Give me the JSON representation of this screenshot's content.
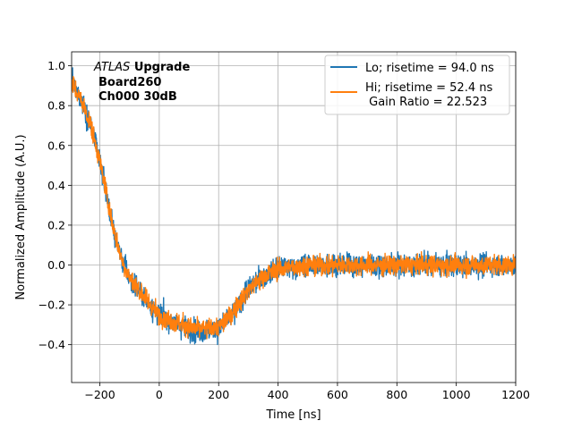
{
  "chart_data": {
    "type": "line",
    "xlabel": "Time [ns]",
    "ylabel": "Normalized Amplitude (A.U.)",
    "xlim": [
      -295,
      1200
    ],
    "ylim": [
      -0.59,
      1.07
    ],
    "xticks": [
      -200,
      0,
      200,
      400,
      600,
      800,
      1000,
      1200
    ],
    "yticks": [
      -0.4,
      -0.2,
      0.0,
      0.2,
      0.4,
      0.6,
      0.8,
      1.0
    ],
    "xtick_labels": [
      "−200",
      "0",
      "200",
      "400",
      "600",
      "800",
      "1000",
      "1200"
    ],
    "ytick_labels": [
      "−0.4",
      "−0.2",
      "0.0",
      "0.2",
      "0.4",
      "0.6",
      "0.8",
      "1.0"
    ],
    "grid": true,
    "legend_position": "top-right",
    "annotation": {
      "experiment": "ATLAS",
      "tag": "Upgrade",
      "board": "Board260",
      "channel": "Ch000 30dB"
    },
    "series": [
      {
        "name": "Lo; risetime = 94.0 ns",
        "color": "#1f77b4",
        "noise": 0.085,
        "x": [
          -295,
          -260,
          -230,
          -200,
          -180,
          -160,
          -140,
          -120,
          -100,
          -80,
          -60,
          -40,
          -20,
          0,
          40,
          80,
          120,
          160,
          200,
          230,
          260,
          300,
          350,
          400,
          450,
          500,
          550,
          600,
          700,
          800,
          900,
          1000,
          1100,
          1200
        ],
        "values": [
          0.92,
          0.82,
          0.7,
          0.52,
          0.38,
          0.22,
          0.1,
          0.0,
          -0.06,
          -0.1,
          -0.14,
          -0.18,
          -0.22,
          -0.25,
          -0.28,
          -0.31,
          -0.33,
          -0.33,
          -0.32,
          -0.28,
          -0.22,
          -0.12,
          -0.06,
          -0.02,
          -0.01,
          0.0,
          0.0,
          0.0,
          0.0,
          0.0,
          0.0,
          0.0,
          0.0,
          0.0
        ]
      },
      {
        "name": "Hi; risetime = 52.4 ns\n Gain Ratio = 22.523",
        "color": "#ff7f0e",
        "noise": 0.075,
        "x": [
          -295,
          -260,
          -230,
          -200,
          -180,
          -160,
          -140,
          -120,
          -100,
          -80,
          -60,
          -40,
          -20,
          0,
          40,
          80,
          120,
          160,
          200,
          230,
          260,
          300,
          350,
          400,
          450,
          500,
          550,
          600,
          700,
          800,
          900,
          1000,
          1100,
          1200
        ],
        "values": [
          0.91,
          0.82,
          0.7,
          0.52,
          0.38,
          0.22,
          0.1,
          0.0,
          -0.06,
          -0.1,
          -0.14,
          -0.18,
          -0.22,
          -0.25,
          -0.28,
          -0.3,
          -0.32,
          -0.32,
          -0.31,
          -0.27,
          -0.21,
          -0.12,
          -0.06,
          -0.02,
          -0.01,
          0.0,
          0.0,
          0.0,
          0.0,
          0.0,
          0.0,
          0.0,
          0.0,
          0.0
        ]
      }
    ]
  }
}
